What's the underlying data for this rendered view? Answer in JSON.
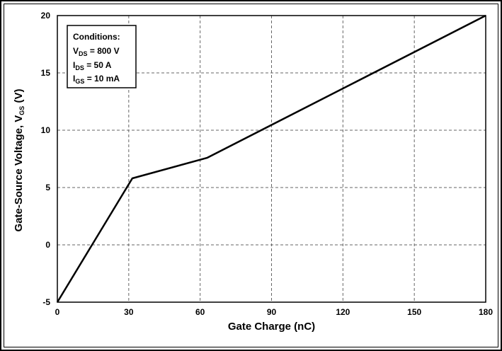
{
  "chart_data": {
    "type": "line",
    "title": "",
    "xlabel": "Gate Charge (nC)",
    "ylabel": {
      "main": "Gate-Source Voltage, V",
      "sub": "GS",
      "unit": " (V)"
    },
    "xlim": [
      0,
      180
    ],
    "ylim": [
      -5,
      20
    ],
    "xticks": [
      0,
      30,
      60,
      90,
      120,
      150,
      180
    ],
    "yticks": [
      -5,
      0,
      5,
      10,
      15,
      20
    ],
    "grid": true,
    "series": [
      {
        "x": [
          0,
          31.5,
          63,
          180
        ],
        "y": [
          -5,
          5.8,
          7.6,
          20
        ]
      }
    ],
    "annotation": {
      "title": "Conditions:",
      "lines": [
        {
          "main": "V",
          "sub": "DS",
          "rest": " = 800 V"
        },
        {
          "main": "I",
          "sub": "DS",
          "rest": " = 50 A"
        },
        {
          "main": "I",
          "sub": "GS",
          "rest": " = 10 mA"
        }
      ],
      "placement": "top-left"
    }
  }
}
